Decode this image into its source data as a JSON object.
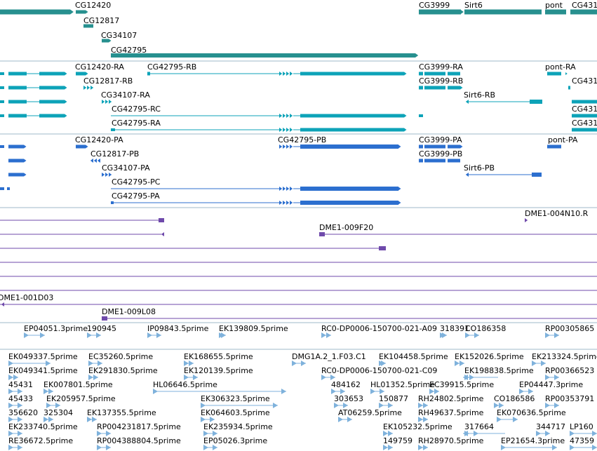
{
  "tracks": {
    "genes": {
      "color": "#27908f",
      "labels": [
        "CG12420",
        "CG12817",
        "CG34107",
        "CG42795",
        "CG3999",
        "Sirt6",
        "pont",
        "CG431"
      ]
    },
    "transcripts_cyan": {
      "color": "#0da3b8",
      "labels": [
        "CG12420-RA",
        "CG42795-RB",
        "CG12817-RB",
        "CG34107-RA",
        "CG42795-RC",
        "CG42795-RA",
        "CG3999-RA",
        "CG3999-RB",
        "Sirt6-RB",
        "pont-RA",
        "CG431",
        "CG431",
        "CG431"
      ]
    },
    "transcripts_blue": {
      "color": "#2c6fcf",
      "labels": [
        "CG12420-PA",
        "CG42795-PB",
        "CG12817-PB",
        "CG34107-PA",
        "CG42795-PC",
        "CG42795-PA",
        "CG3999-PA",
        "CG3999-PB",
        "Sirt6-PB",
        "pont-PA"
      ]
    },
    "clones": {
      "color": "#6f4aab",
      "labels": [
        "DME1-004N10.R",
        "DME1-009F20",
        "DME1-001D03",
        "DME1-009L08"
      ]
    },
    "ests": {
      "color": "#7fb2dc",
      "labels": [
        "EP04051.3prime",
        "190945",
        "IP09843.5prime",
        "EK139809.5prime",
        "RC0-DP0006-150700-021-A09",
        "318391",
        "CO186358",
        "RP00305865",
        "EK049337.5prime",
        "EC35260.5prime",
        "EK168655.5prime",
        "DMG1A.2_1.F03.C1",
        "EK104458.5prime",
        "EK152026.5prime",
        "EK213324.5prime",
        "EK049341.5prime",
        "EK291830.5prime",
        "EK120139.5prime",
        "RC0-DP0006-150700-021-C09",
        "EK198838.5prime",
        "RP00366523",
        "45431",
        "EK007801.5prime",
        "HL06646.5prime",
        "484162",
        "HL01352.5prime",
        "EC39915.5prime",
        "EP04447.3prime",
        "45433",
        "EK205957.5prime",
        "EK306323.5prime",
        "303653",
        "150877",
        "RH24802.5prime",
        "CO186586",
        "RP00353791",
        "356620",
        "325304",
        "EK137355.5prime",
        "EK064603.5prime",
        "AT06259.5prime",
        "RH49637.5prime",
        "EK070636.5prime",
        "EK233740.5prime",
        "RP004231817.5prime",
        "EK235934.5prime",
        "EK105232.5prime",
        "317664",
        "344717",
        "LP160",
        "RE36672.5prime",
        "RP004388804.5prime",
        "EP05026.3prime",
        "149759",
        "RH28970.5prime",
        "EP21654.3prime",
        "47359"
      ]
    }
  }
}
